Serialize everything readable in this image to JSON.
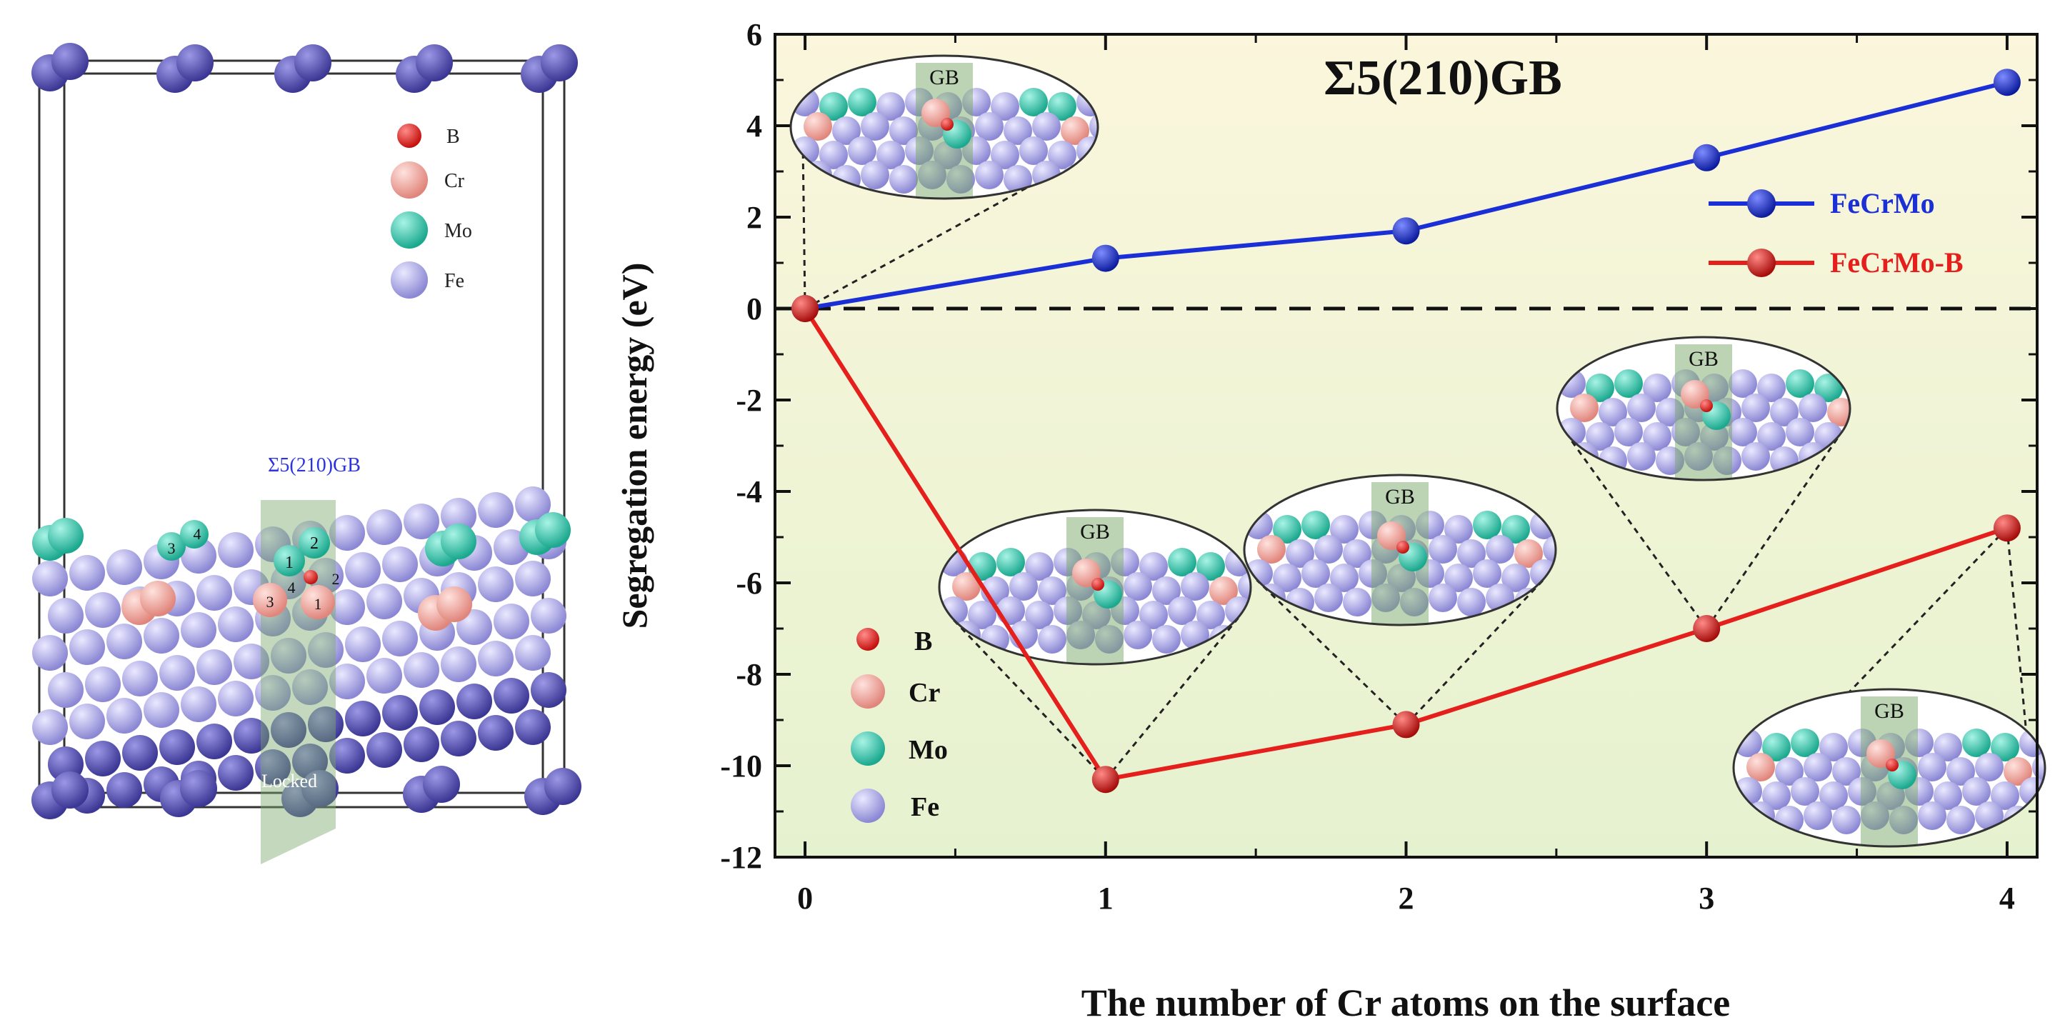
{
  "structure_panel": {
    "legend": [
      {
        "label": "B",
        "color": "#e8231f"
      },
      {
        "label": "Cr",
        "color": "#f5a9a1"
      },
      {
        "label": "Mo",
        "color": "#3fd0b6"
      },
      {
        "label": "Fe",
        "color": "#b9b6ec"
      }
    ],
    "gb_label": "Σ5(210)GB",
    "locked_label": "Locked",
    "site_numbers": [
      "1",
      "2",
      "3",
      "4"
    ]
  },
  "chart_data": {
    "type": "line",
    "title": "Σ5(210)GB",
    "xlabel": "The number of Cr atoms on the surface",
    "ylabel": "Segregation energy (eV)",
    "x": [
      0,
      1,
      2,
      3,
      4
    ],
    "xlim": [
      -0.1,
      4.1
    ],
    "ylim": [
      -12,
      6
    ],
    "xticks": [
      "0",
      "1",
      "2",
      "3",
      "4"
    ],
    "yticks": [
      "6",
      "4",
      "2",
      "0",
      "-2",
      "-4",
      "-6",
      "-8",
      "-10",
      "-12"
    ],
    "series": [
      {
        "name": "FeCrMo",
        "values": [
          0,
          1.1,
          1.7,
          3.3,
          4.95
        ],
        "color": "#1a2fd6"
      },
      {
        "name": "FeCrMo-B",
        "values": [
          0,
          -10.3,
          -9.1,
          -7.0,
          -4.8
        ],
        "color": "#e5201c"
      }
    ],
    "reference_line": {
      "y": 0,
      "style": "dashed"
    },
    "atom_legend": [
      {
        "label": "B",
        "color": "#e8231f"
      },
      {
        "label": "Cr",
        "color": "#f5a9a1"
      },
      {
        "label": "Mo",
        "color": "#3fd0b6"
      },
      {
        "label": "Fe",
        "color": "#b9b6ec"
      }
    ],
    "insets": [
      {
        "label": "GB",
        "point_series": "FeCrMo",
        "x": 0
      },
      {
        "label": "GB",
        "point_series": "FeCrMo-B",
        "x": 1
      },
      {
        "label": "GB",
        "point_series": "FeCrMo-B",
        "x": 2
      },
      {
        "label": "GB",
        "point_series": "FeCrMo-B",
        "x": 3
      },
      {
        "label": "GB",
        "point_series": "FeCrMo-B",
        "x": 4
      }
    ],
    "legend_position": "right",
    "background": "gradient yellow-to-green"
  }
}
